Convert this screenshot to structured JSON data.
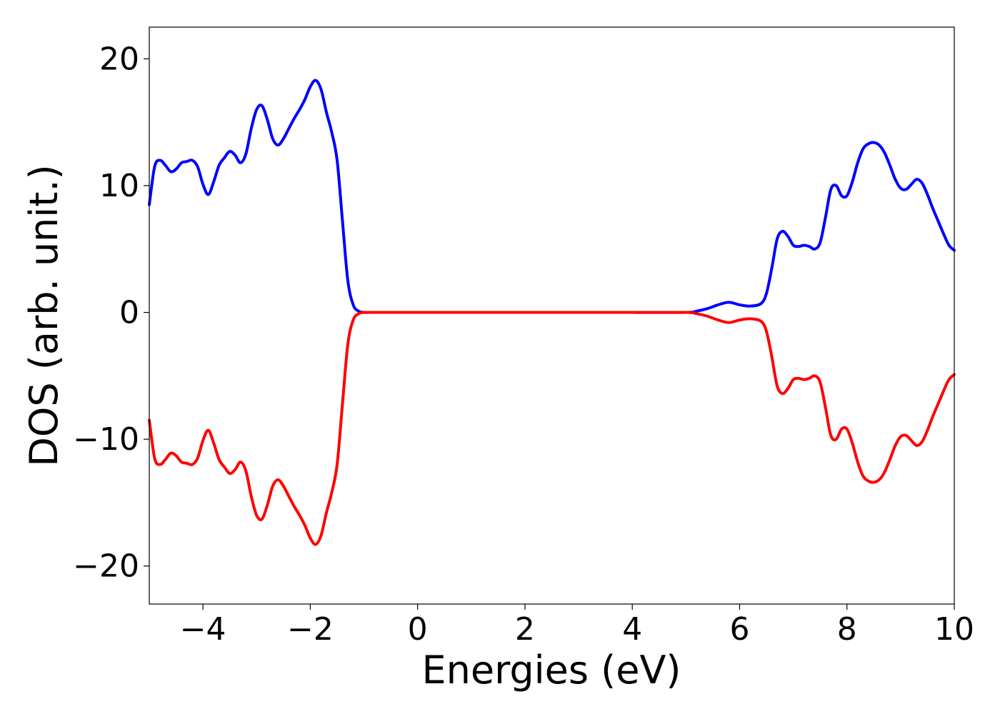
{
  "chart_data": {
    "type": "line",
    "title": "",
    "xlabel": "Energies (eV)",
    "ylabel": "DOS (arb. unit.)",
    "xlim": [
      -5,
      10
    ],
    "ylim": [
      -23,
      22.5
    ],
    "xticks": [
      -4,
      -2,
      0,
      2,
      4,
      6,
      8,
      10
    ],
    "xtick_labels": [
      "−4",
      "−2",
      "0",
      "2",
      "4",
      "6",
      "8",
      "10"
    ],
    "yticks": [
      -20,
      -10,
      0,
      10,
      20
    ],
    "ytick_labels": [
      "−20",
      "−10",
      "0",
      "10",
      "20"
    ],
    "grid": false,
    "legend": false,
    "series": [
      {
        "color": "#0000ff",
        "x": [
          -5.0,
          -4.9,
          -4.8,
          -4.7,
          -4.6,
          -4.5,
          -4.4,
          -4.3,
          -4.2,
          -4.1,
          -4.0,
          -3.9,
          -3.8,
          -3.7,
          -3.6,
          -3.5,
          -3.4,
          -3.3,
          -3.2,
          -3.1,
          -3.0,
          -2.9,
          -2.8,
          -2.7,
          -2.6,
          -2.5,
          -2.4,
          -2.3,
          -2.2,
          -2.1,
          -2.0,
          -1.9,
          -1.8,
          -1.7,
          -1.6,
          -1.5,
          -1.4,
          -1.3,
          -1.2,
          -1.1,
          -1.0,
          -0.9,
          -0.8,
          -0.7,
          -0.6,
          -0.5,
          0.0,
          1.0,
          2.0,
          3.0,
          4.0,
          5.0,
          5.2,
          5.4,
          5.6,
          5.8,
          6.0,
          6.2,
          6.4,
          6.5,
          6.6,
          6.7,
          6.8,
          6.9,
          7.0,
          7.1,
          7.2,
          7.3,
          7.4,
          7.5,
          7.6,
          7.7,
          7.8,
          7.9,
          8.0,
          8.1,
          8.2,
          8.3,
          8.4,
          8.5,
          8.6,
          8.7,
          8.8,
          8.9,
          9.0,
          9.1,
          9.2,
          9.3,
          9.4,
          9.5,
          9.6,
          9.7,
          9.8,
          9.9,
          10.0
        ],
        "y": [
          8.5,
          11.5,
          12.0,
          11.6,
          11.1,
          11.3,
          11.8,
          11.9,
          12.0,
          11.5,
          10.1,
          9.3,
          10.3,
          11.6,
          12.2,
          12.7,
          12.4,
          11.8,
          12.5,
          14.5,
          16.0,
          16.3,
          15.2,
          13.7,
          13.2,
          13.7,
          14.5,
          15.3,
          16.0,
          16.8,
          17.8,
          18.3,
          17.6,
          15.8,
          14.2,
          12.0,
          7.2,
          2.5,
          0.6,
          0.1,
          0.0,
          0.0,
          0.0,
          0.0,
          0.0,
          0.0,
          0.0,
          0.0,
          0.0,
          0.0,
          0.0,
          0.0,
          0.1,
          0.3,
          0.6,
          0.8,
          0.6,
          0.5,
          0.7,
          1.5,
          3.5,
          5.8,
          6.4,
          6.0,
          5.3,
          5.2,
          5.3,
          5.2,
          5.0,
          5.5,
          7.5,
          9.7,
          10.0,
          9.2,
          9.2,
          10.3,
          11.8,
          12.9,
          13.3,
          13.4,
          13.2,
          12.6,
          11.6,
          10.5,
          9.8,
          9.7,
          10.1,
          10.5,
          10.2,
          9.3,
          8.2,
          7.2,
          6.2,
          5.3,
          4.9
        ]
      },
      {
        "color": "#ff0000",
        "x": [
          -5.0,
          -4.9,
          -4.8,
          -4.7,
          -4.6,
          -4.5,
          -4.4,
          -4.3,
          -4.2,
          -4.1,
          -4.0,
          -3.9,
          -3.8,
          -3.7,
          -3.6,
          -3.5,
          -3.4,
          -3.3,
          -3.2,
          -3.1,
          -3.0,
          -2.9,
          -2.8,
          -2.7,
          -2.6,
          -2.5,
          -2.4,
          -2.3,
          -2.2,
          -2.1,
          -2.0,
          -1.9,
          -1.8,
          -1.7,
          -1.6,
          -1.5,
          -1.4,
          -1.3,
          -1.2,
          -1.1,
          -1.0,
          -0.9,
          -0.8,
          -0.7,
          -0.6,
          -0.5,
          0.0,
          1.0,
          2.0,
          3.0,
          4.0,
          5.0,
          5.2,
          5.4,
          5.6,
          5.8,
          6.0,
          6.2,
          6.4,
          6.5,
          6.6,
          6.7,
          6.8,
          6.9,
          7.0,
          7.1,
          7.2,
          7.3,
          7.4,
          7.5,
          7.6,
          7.7,
          7.8,
          7.9,
          8.0,
          8.1,
          8.2,
          8.3,
          8.4,
          8.5,
          8.6,
          8.7,
          8.8,
          8.9,
          9.0,
          9.1,
          9.2,
          9.3,
          9.4,
          9.5,
          9.6,
          9.7,
          9.8,
          9.9,
          10.0
        ],
        "y": [
          -8.5,
          -11.5,
          -12.0,
          -11.6,
          -11.1,
          -11.3,
          -11.8,
          -11.9,
          -12.0,
          -11.5,
          -10.1,
          -9.3,
          -10.3,
          -11.6,
          -12.2,
          -12.7,
          -12.4,
          -11.8,
          -12.5,
          -14.5,
          -16.0,
          -16.3,
          -15.2,
          -13.7,
          -13.2,
          -13.7,
          -14.5,
          -15.3,
          -16.0,
          -16.8,
          -17.8,
          -18.3,
          -17.6,
          -15.8,
          -14.2,
          -12.0,
          -7.2,
          -2.5,
          -0.6,
          -0.1,
          0.0,
          0.0,
          0.0,
          0.0,
          0.0,
          0.0,
          0.0,
          0.0,
          0.0,
          0.0,
          0.0,
          0.0,
          -0.1,
          -0.3,
          -0.6,
          -0.8,
          -0.6,
          -0.5,
          -0.7,
          -1.5,
          -3.5,
          -5.8,
          -6.4,
          -6.0,
          -5.3,
          -5.2,
          -5.3,
          -5.2,
          -5.0,
          -5.5,
          -7.5,
          -9.7,
          -10.0,
          -9.2,
          -9.2,
          -10.3,
          -11.8,
          -12.9,
          -13.3,
          -13.4,
          -13.2,
          -12.6,
          -11.6,
          -10.5,
          -9.8,
          -9.7,
          -10.1,
          -10.5,
          -10.2,
          -9.3,
          -8.2,
          -7.2,
          -6.2,
          -5.3,
          -4.9
        ]
      }
    ]
  }
}
